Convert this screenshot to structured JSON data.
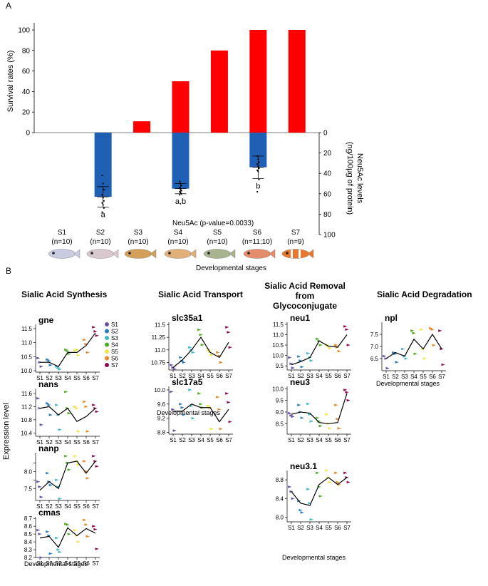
{
  "panels": {
    "a_label": "A",
    "b_label": "B",
    "x_label_a": "Developmental stages",
    "x_label_b": "Developmental stages",
    "y_label_b": "Expression level",
    "neu5ac_stat": "Neu5Ac (p-value=0.0033)"
  },
  "colors": {
    "survival": "#ff0000",
    "neu5ac": "#1f5fb4",
    "stages": {
      "S1": "#6a51a3",
      "S2": "#2b7bba",
      "S3": "#41b6c4",
      "S4": "#4dac26",
      "S5": "#f0e442",
      "S6": "#e6862a",
      "S7": "#8b0a50"
    },
    "mean_line": "#000000"
  },
  "stages": [
    {
      "name": "S1",
      "n": "(n=10)"
    },
    {
      "name": "S2",
      "n": "(n=10)"
    },
    {
      "name": "S3",
      "n": "(n=10)"
    },
    {
      "name": "S4",
      "n": "(n=10)"
    },
    {
      "name": "S5",
      "n": "(n=10)"
    },
    {
      "name": "S6",
      "n": "(n=11;10)"
    },
    {
      "name": "S7",
      "n": "(n=9)"
    }
  ],
  "groups": [
    {
      "title": "Sialic Acid Synthesis"
    },
    {
      "title": "Sialic Acid Transport"
    },
    {
      "title": "Sialic Acid Removal from Glycoconjugate"
    },
    {
      "title": "Sialic Acid Degradation"
    }
  ],
  "chart_data": [
    {
      "id": "survival",
      "type": "bar",
      "ylabel": "Survival rates (%)",
      "ylim": [
        0,
        100
      ],
      "yticks": [
        0,
        20,
        40,
        60,
        80,
        100
      ],
      "categories": [
        "S1",
        "S2",
        "S3",
        "S4",
        "S5",
        "S6",
        "S7"
      ],
      "values": [
        0,
        0,
        11,
        50,
        80,
        100,
        100
      ]
    },
    {
      "id": "neu5ac",
      "type": "bar",
      "ylabel": "Neu5Ac levels (ng/100μg of protein)",
      "ylim": [
        0,
        100
      ],
      "yticks": [
        0,
        20,
        40,
        60,
        80,
        100
      ],
      "categories": [
        "S1",
        "S2",
        "S3",
        "S4",
        "S5",
        "S6",
        "S7"
      ],
      "values": [
        null,
        63,
        null,
        55,
        null,
        34,
        null
      ],
      "errors": [
        null,
        10,
        null,
        5,
        null,
        11,
        null
      ],
      "points": [
        [],
        [
          42,
          50,
          56,
          61,
          64,
          67,
          69,
          71,
          74,
          78
        ],
        [],
        [
          48,
          50,
          52,
          54,
          56,
          57,
          58,
          59,
          60,
          61
        ],
        [],
        [
          23,
          26,
          29,
          31,
          33,
          35,
          37,
          38,
          46,
          58
        ],
        []
      ],
      "letters": [
        "",
        "a",
        "",
        "a,b",
        "",
        "b",
        ""
      ]
    },
    {
      "id": "gne",
      "type": "line",
      "label": "gne",
      "x": [
        "S1",
        "S2",
        "S3",
        "S4",
        "S5",
        "S6",
        "S7"
      ],
      "ylim": [
        9.95,
        11.65
      ],
      "yticks": [
        10.0,
        10.5,
        11.0,
        11.5
      ],
      "means": [
        10.3,
        10.3,
        10.15,
        10.65,
        10.65,
        10.9,
        11.35
      ],
      "points": [
        [
          10.45,
          10.3,
          10.15
        ],
        [
          10.4,
          10.35,
          10.2
        ],
        [
          10.15,
          10.1,
          10.05
        ],
        [
          10.75,
          10.7,
          10.6
        ],
        [
          10.72,
          10.75,
          10.55
        ],
        [
          11.1,
          10.95,
          10.65
        ],
        [
          11.55,
          11.4,
          11.25
        ]
      ]
    },
    {
      "id": "nans",
      "type": "line",
      "label": "nans",
      "x": [
        "S1",
        "S2",
        "S3",
        "S4",
        "S5",
        "S6",
        "S7"
      ],
      "ylim": [
        10.3,
        11.75
      ],
      "yticks": [
        10.4,
        10.8,
        11.2,
        11.6
      ],
      "means": [
        11.15,
        11.2,
        10.95,
        11.15,
        10.75,
        10.9,
        11.15
      ],
      "points": [
        [
          11.45,
          11.15,
          10.65
        ],
        [
          11.3,
          11.25,
          10.95
        ],
        [
          11.25,
          10.95,
          10.5
        ],
        [
          11.65,
          11.15,
          11.0
        ],
        [
          11.2,
          11.15,
          10.45
        ],
        [
          11.35,
          11.2,
          10.45
        ],
        [
          11.25,
          11.15,
          11.05
        ]
      ]
    },
    {
      "id": "nanp",
      "type": "line",
      "label": "nanp",
      "x": [
        "S1",
        "S2",
        "S3",
        "S4",
        "S5",
        "S6",
        "S7"
      ],
      "ylim": [
        7.15,
        8.55
      ],
      "yticks": [
        7.5,
        7.75,
        8.0,
        8.25
      ],
      "means": [
        7.45,
        7.7,
        7.5,
        8.25,
        8.3,
        7.95,
        8.3
      ],
      "points": [
        [
          7.7,
          7.55,
          7.25
        ],
        [
          7.95,
          7.7,
          7.6
        ],
        [
          7.75,
          7.55,
          7.2
        ],
        [
          8.45,
          8.25,
          8.05
        ],
        [
          8.45,
          8.3,
          8.2
        ],
        [
          8.3,
          8.0,
          7.8
        ],
        [
          8.45,
          8.3,
          8.15
        ]
      ]
    },
    {
      "id": "cmas",
      "type": "line",
      "label": "cmas",
      "x": [
        "S1",
        "S2",
        "S3",
        "S4",
        "S5",
        "S6",
        "S7"
      ],
      "ylim": [
        8.2,
        8.72
      ],
      "yticks": [
        8.2,
        8.3,
        8.4,
        8.5,
        8.6,
        8.7
      ],
      "means": [
        8.45,
        8.47,
        8.33,
        8.58,
        8.48,
        8.57,
        8.51
      ],
      "points": [
        [
          8.55,
          8.5,
          8.2
        ],
        [
          8.53,
          8.48,
          8.25
        ],
        [
          8.45,
          8.3,
          8.27
        ],
        [
          8.63,
          8.62,
          8.5
        ],
        [
          8.55,
          8.48,
          8.4
        ],
        [
          8.68,
          8.62,
          8.47
        ],
        [
          8.6,
          8.56,
          8.31
        ]
      ]
    },
    {
      "id": "slc35a1",
      "type": "line",
      "label": "slc35a1",
      "x": [
        "S1",
        "S2",
        "S3",
        "S4",
        "S5",
        "S6",
        "S7"
      ],
      "ylim": [
        10.6,
        11.55
      ],
      "yticks": [
        10.75,
        11.0,
        11.25,
        11.5
      ],
      "means": [
        10.65,
        10.8,
        11.0,
        11.25,
        10.95,
        10.85,
        11.15
      ],
      "points": [
        [
          10.7,
          10.65,
          10.62
        ],
        [
          10.85,
          10.78,
          10.75
        ],
        [
          11.05,
          11.0,
          10.95
        ],
        [
          11.4,
          11.3,
          11.1
        ],
        [
          11.0,
          10.97,
          10.9
        ],
        [
          10.95,
          10.88,
          10.75
        ],
        [
          11.45,
          11.35,
          11.05
        ]
      ]
    },
    {
      "id": "slc17a5",
      "type": "line",
      "label": "slc17a5",
      "x": [
        "S1",
        "S2",
        "S3",
        "S4",
        "S5",
        "S6",
        "S7"
      ],
      "ylim": [
        8.75,
        10.1
      ],
      "yticks": [
        8.8,
        9.2,
        9.6,
        10.0
      ],
      "means": [
        9.4,
        9.4,
        9.6,
        9.5,
        9.5,
        9.1,
        9.45
      ],
      "points": [
        [
          9.95,
          9.45,
          8.85
        ],
        [
          9.6,
          9.5,
          9.3
        ],
        [
          10.0,
          9.55,
          9.2
        ],
        [
          9.9,
          9.6,
          9.5
        ],
        [
          9.55,
          9.5,
          8.9
        ],
        [
          9.8,
          9.45,
          8.9
        ],
        [
          9.9,
          9.65,
          9.1
        ]
      ]
    },
    {
      "id": "neu1",
      "type": "line",
      "label": "neu1",
      "x": [
        "S1",
        "S2",
        "S3",
        "S4",
        "S5",
        "S6",
        "S7"
      ],
      "ylim": [
        9.3,
        11.6
      ],
      "yticks": [
        9.5,
        10.0,
        10.5,
        11.0,
        11.5
      ],
      "means": [
        9.55,
        9.7,
        9.9,
        10.7,
        10.45,
        10.4,
        11.0
      ],
      "points": [
        [
          9.9,
          9.6,
          9.4
        ],
        [
          9.95,
          9.75,
          9.45
        ],
        [
          10.1,
          9.9,
          9.75
        ],
        [
          10.8,
          10.7,
          10.5
        ],
        [
          10.5,
          10.45,
          10.35
        ],
        [
          10.5,
          10.4,
          10.2
        ],
        [
          11.4,
          11.25,
          10.5
        ]
      ]
    },
    {
      "id": "neu3",
      "type": "line",
      "label": "neu3",
      "x": [
        "S1",
        "S2",
        "S3",
        "S4",
        "S5",
        "S6",
        "S7"
      ],
      "ylim": [
        8.05,
        10.1
      ],
      "yticks": [
        8.5,
        9.0,
        9.5,
        10.0
      ],
      "means": [
        8.9,
        9.0,
        8.95,
        8.55,
        8.5,
        8.55,
        9.8
      ],
      "points": [
        [
          8.95,
          8.85,
          8.8
        ],
        [
          9.3,
          9.0,
          8.75
        ],
        [
          9.35,
          8.9,
          8.6
        ],
        [
          8.75,
          8.6,
          8.4
        ],
        [
          8.9,
          8.5,
          8.3
        ],
        [
          9.3,
          8.7,
          8.3
        ],
        [
          9.95,
          9.85,
          9.5
        ]
      ]
    },
    {
      "id": "neu3.1",
      "type": "line",
      "label": "neu3.1",
      "x": [
        "S1",
        "S2",
        "S3",
        "S4",
        "S5",
        "S6",
        "S7"
      ],
      "ylim": [
        7.9,
        9.0
      ],
      "yticks": [
        8.0,
        8.4,
        8.8
      ],
      "means": [
        8.55,
        8.3,
        8.25,
        8.7,
        8.85,
        8.7,
        8.85
      ],
      "points": [
        [
          8.65,
          8.55,
          8.4
        ],
        [
          8.35,
          8.15,
          8.1
        ],
        [
          8.6,
          8.3,
          7.95
        ],
        [
          8.95,
          8.65,
          8.45
        ],
        [
          9.0,
          8.85,
          8.75
        ],
        [
          8.95,
          8.75,
          8.7
        ],
        [
          8.95,
          8.85,
          8.75
        ]
      ]
    },
    {
      "id": "npl",
      "type": "line",
      "label": "npl",
      "x": [
        "S1",
        "S2",
        "S3",
        "S4",
        "S5",
        "S6",
        "S7"
      ],
      "ylim": [
        6.0,
        8.0
      ],
      "yticks": [
        6.5,
        7.0,
        7.5
      ],
      "means": [
        6.5,
        6.75,
        6.6,
        7.3,
        6.9,
        7.5,
        6.9
      ],
      "points": [
        [
          6.6,
          6.5,
          6.1
        ],
        [
          6.75,
          6.7,
          6.35
        ],
        [
          6.9,
          6.6,
          6.5
        ],
        [
          7.65,
          7.55,
          6.7
        ],
        [
          7.7,
          6.9,
          6.5
        ],
        [
          7.75,
          7.7,
          7.05
        ],
        [
          7.65,
          6.9,
          6.25
        ]
      ]
    }
  ]
}
